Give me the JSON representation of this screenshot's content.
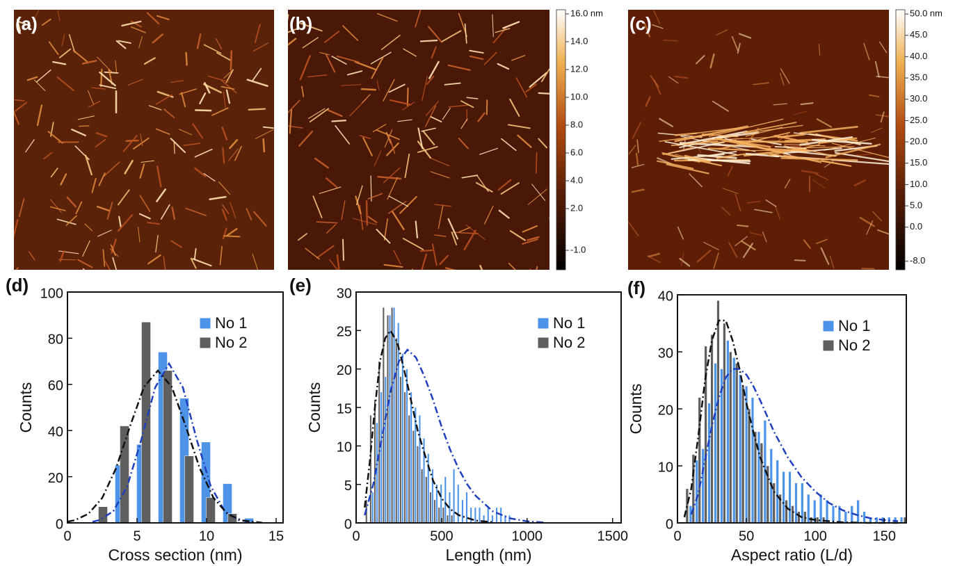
{
  "chart_data": [
    {
      "type": "image",
      "label": "(a)"
    },
    {
      "type": "image",
      "label": "(b)",
      "ylim": [
        -2.4,
        16.3
      ],
      "yticks": [
        {
          "value": 16,
          "label": "16.0 nm"
        },
        {
          "value": 14,
          "label": "14.0"
        },
        {
          "value": 12,
          "label": "12.0"
        },
        {
          "value": 10,
          "label": "10.0"
        },
        {
          "value": 8,
          "label": "8.0"
        },
        {
          "value": 6,
          "label": "6.0"
        },
        {
          "value": 4,
          "label": "4.0"
        },
        {
          "value": 2,
          "label": "2.0"
        },
        {
          "value": -1,
          "label": "-1.0"
        }
      ]
    },
    {
      "type": "image",
      "label": "(c)",
      "ylim": [
        -10,
        51
      ],
      "yticks": [
        {
          "value": 50,
          "label": "50.0 nm"
        },
        {
          "value": 45,
          "label": "45.0"
        },
        {
          "value": 40,
          "label": "40.0"
        },
        {
          "value": 35,
          "label": "35.0"
        },
        {
          "value": 30,
          "label": "30.0"
        },
        {
          "value": 25,
          "label": "25.0"
        },
        {
          "value": 20,
          "label": "20.0"
        },
        {
          "value": 15,
          "label": "15.0"
        },
        {
          "value": 10,
          "label": "10.0"
        },
        {
          "value": 5,
          "label": "5.0"
        },
        {
          "value": 0,
          "label": "0.0"
        },
        {
          "value": -8,
          "label": "-8.0"
        }
      ]
    },
    {
      "type": "bar",
      "label": "(d)",
      "xlabel": "Cross section (nm)",
      "ylabel": "Counts",
      "xlim": [
        0,
        15.5
      ],
      "ylim": [
        0,
        100
      ],
      "xticks": [
        0,
        5,
        10,
        15
      ],
      "yticks": [
        0,
        20,
        40,
        60,
        80,
        100
      ],
      "legend": "upper right",
      "series": [
        {
          "name": "No 1",
          "color": "#4d94e8",
          "x": [
            3.75,
            5.3,
            6.85,
            8.4,
            9.95,
            11.5,
            13.05
          ],
          "values": [
            25,
            34,
            74,
            54,
            35,
            17,
            2
          ]
        },
        {
          "name": "No 2",
          "color": "#5f5f5f",
          "x": [
            2.55,
            4.1,
            5.65,
            7.2,
            8.75,
            10.3,
            11.85
          ],
          "values": [
            7,
            42,
            87,
            66,
            29,
            11,
            4
          ]
        },
        {
          "type": "line",
          "color": "#1f3fbf",
          "x": [
            1.8,
            2.3,
            3.3,
            4.3,
            5.3,
            6.3,
            7.3,
            8.3,
            9.3,
            10.3,
            11.3,
            12.3,
            13.3
          ],
          "values": [
            0.5,
            1.2,
            5.1,
            15.9,
            35.9,
            58.6,
            69,
            58.6,
            35.9,
            15.9,
            5.1,
            1.2,
            0.3
          ]
        },
        {
          "type": "line",
          "color": "#111111",
          "x": [
            0,
            0.5,
            1.5,
            2.5,
            3.5,
            4.5,
            5.5,
            6.5,
            7.5,
            8.5,
            9.5,
            10.5,
            11.5,
            12.5,
            14
          ],
          "values": [
            0.55,
            1.1,
            3.9,
            10.8,
            23.8,
            41.9,
            58.9,
            66,
            58.9,
            41.9,
            23.8,
            10.8,
            3.9,
            1.1,
            0.1
          ]
        }
      ]
    },
    {
      "type": "bar",
      "label": "(e)",
      "xlabel": "Length (nm)",
      "ylabel": "Counts",
      "xlim": [
        0,
        1550
      ],
      "ylim": [
        0,
        30
      ],
      "xticks": [
        0,
        500,
        1000,
        1500
      ],
      "yticks": [
        0,
        5,
        10,
        15,
        20,
        25,
        30
      ],
      "legend": "upper right",
      "series": [
        {
          "name": "No 1",
          "color": "#4d94e8",
          "x": [
            97,
            122,
            147,
            172,
            197,
            222,
            247,
            272,
            297,
            322,
            347,
            372,
            397,
            422,
            447,
            472,
            497,
            522,
            547,
            572,
            597,
            622,
            647,
            672,
            697,
            722,
            747,
            772,
            797,
            822,
            847,
            872,
            897
          ],
          "values": [
            4,
            13,
            17,
            19,
            27,
            28,
            26,
            22,
            20,
            17,
            15,
            14,
            11,
            9,
            7,
            5,
            5,
            6,
            4,
            7,
            5,
            3,
            4,
            2,
            2,
            2,
            1,
            2,
            1,
            2,
            2,
            1,
            1
          ]
        },
        {
          "name": "No 2",
          "color": "#5f5f5f",
          "x": [
            60,
            85,
            110,
            135,
            160,
            185,
            210,
            235,
            260,
            285,
            310,
            335,
            360,
            385,
            410,
            435,
            460,
            485,
            510,
            535,
            560
          ],
          "values": [
            3,
            14,
            16,
            21,
            28,
            27,
            28,
            24,
            19,
            17,
            14,
            12,
            10,
            7,
            6,
            4,
            3,
            2,
            2,
            1,
            1
          ]
        },
        {
          "type": "line",
          "color": "#1f3fbf",
          "x": [
            50,
            100,
            150,
            200,
            250,
            300,
            350,
            400,
            450,
            500,
            550,
            600,
            650,
            700,
            800,
            900,
            1000,
            1100
          ],
          "values": [
            1,
            5,
            11,
            17,
            21,
            22.5,
            21.5,
            19,
            16,
            12.5,
            9.5,
            7,
            5,
            3.5,
            1.5,
            0.6,
            0.2,
            0.05
          ]
        },
        {
          "type": "line",
          "color": "#111111",
          "x": [
            50,
            80,
            110,
            140,
            170,
            200,
            240,
            280,
            320,
            360,
            400,
            450,
            500,
            550,
            600,
            700,
            800
          ],
          "values": [
            2,
            8,
            15,
            21,
            24,
            25,
            23.5,
            20,
            16,
            12,
            9,
            5.5,
            3.2,
            1.8,
            1,
            0.3,
            0.1
          ]
        }
      ]
    },
    {
      "type": "bar",
      "label": "(f)",
      "xlabel": "Aspect ratio (L/d)",
      "ylabel": "Counts",
      "xlim": [
        0,
        166
      ],
      "ylim": [
        0,
        40
      ],
      "xticks": [
        0,
        50,
        100,
        150
      ],
      "yticks": [
        0,
        10,
        20,
        30,
        40
      ],
      "legend": "upper right",
      "series": [
        {
          "name": "No 1",
          "color": "#4d94e8",
          "x": [
            9.5,
            14,
            18.5,
            23,
            27.5,
            32,
            36.5,
            41,
            45.5,
            50,
            54.5,
            59,
            63.5,
            68,
            72.5,
            77,
            81.5,
            86,
            90.5,
            95,
            99.5,
            104,
            108.5,
            113,
            117.5,
            122,
            126.5,
            131,
            135.5,
            140,
            144.5,
            149,
            153.5,
            158,
            162.5
          ],
          "values": [
            3,
            11,
            13,
            21,
            28,
            27,
            32,
            29,
            26,
            24,
            22,
            16,
            18,
            13,
            11,
            9,
            9,
            7,
            7,
            5,
            4,
            5,
            4,
            3,
            3,
            2,
            3,
            4,
            2,
            1,
            1,
            1,
            1,
            1,
            1
          ]
        },
        {
          "name": "No 2",
          "color": "#5f5f5f",
          "x": [
            7,
            11.5,
            16,
            20.5,
            25,
            29.5,
            34,
            38.5,
            43,
            47.5,
            52,
            56.5,
            61,
            65.5,
            70,
            74.5,
            79,
            83.5,
            88,
            92.5,
            97,
            101.5,
            106,
            165
          ],
          "values": [
            6,
            12,
            22,
            31,
            33,
            39,
            35,
            30,
            28,
            24,
            20,
            16,
            14,
            10,
            7,
            5,
            4,
            3,
            2,
            2,
            1,
            1,
            1,
            1
          ]
        },
        {
          "type": "line",
          "color": "#1f3fbf",
          "x": [
            10,
            15,
            20,
            25,
            30,
            35,
            40,
            45,
            50,
            55,
            60,
            70,
            80,
            90,
            100,
            110,
            120,
            130,
            140,
            150,
            160
          ],
          "values": [
            1.5,
            5,
            11,
            17,
            22,
            25.5,
            27,
            27,
            26,
            24,
            21.5,
            16,
            11.5,
            8,
            5.5,
            3.5,
            2.2,
            1.4,
            0.8,
            0.5,
            0.3
          ]
        },
        {
          "type": "line",
          "color": "#111111",
          "x": [
            5,
            10,
            15,
            20,
            25,
            30,
            35,
            40,
            45,
            50,
            55,
            60,
            70,
            80,
            90,
            100,
            120,
            140,
            160
          ],
          "values": [
            1,
            6,
            15,
            25,
            32,
            35.5,
            35.5,
            32,
            27,
            21,
            16,
            11.5,
            5.5,
            2.5,
            1,
            0.5,
            0.1,
            0,
            0
          ]
        }
      ]
    }
  ]
}
